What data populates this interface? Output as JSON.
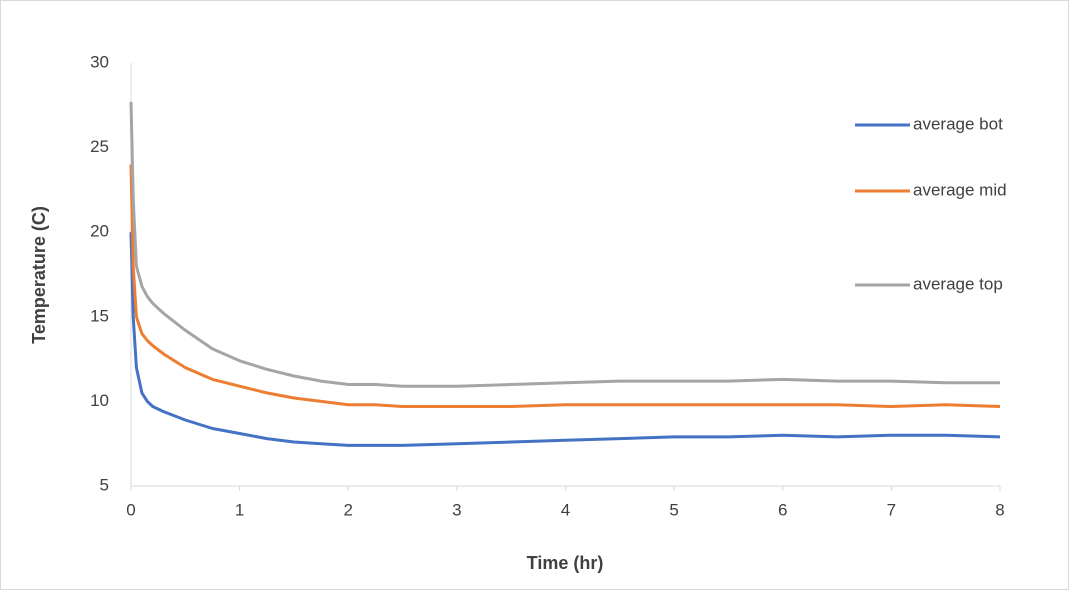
{
  "chart_data": {
    "type": "line",
    "x_label": "Time (hr)",
    "y_label": "Temperature (C)",
    "x": [
      0,
      0.02,
      0.05,
      0.1,
      0.15,
      0.2,
      0.3,
      0.5,
      0.75,
      1,
      1.25,
      1.5,
      1.75,
      2,
      2.25,
      2.5,
      3,
      3.5,
      4,
      4.5,
      5,
      5.5,
      6,
      6.5,
      7,
      7.5,
      8
    ],
    "series": [
      {
        "name": "average bot",
        "color": "#4472c4",
        "values": [
          20,
          15,
          12,
          10.5,
          10,
          9.7,
          9.4,
          8.9,
          8.4,
          8.1,
          7.8,
          7.6,
          7.5,
          7.4,
          7.4,
          7.4,
          7.5,
          7.6,
          7.7,
          7.8,
          7.9,
          7.9,
          8.0,
          7.9,
          8.0,
          8.0,
          7.9
        ]
      },
      {
        "name": "average mid",
        "color": "#ed7d31",
        "values": [
          24,
          18,
          15,
          14,
          13.6,
          13.3,
          12.8,
          12.0,
          11.3,
          10.9,
          10.5,
          10.2,
          10.0,
          9.8,
          9.8,
          9.7,
          9.7,
          9.7,
          9.8,
          9.8,
          9.8,
          9.8,
          9.8,
          9.8,
          9.7,
          9.8,
          9.7
        ]
      },
      {
        "name": "average top",
        "color": "#a5a5a5",
        "values": [
          27.7,
          22,
          18,
          16.8,
          16.2,
          15.8,
          15.2,
          14.2,
          13.1,
          12.4,
          11.9,
          11.5,
          11.2,
          11.0,
          11.0,
          10.9,
          10.9,
          11.0,
          11.1,
          11.2,
          11.2,
          11.2,
          11.3,
          11.2,
          11.2,
          11.1,
          11.1
        ]
      }
    ],
    "xlim": [
      0,
      8
    ],
    "xticks": [
      0,
      1,
      2,
      3,
      4,
      5,
      6,
      7,
      8
    ],
    "ylim": [
      5,
      30
    ],
    "yticks": [
      5,
      10,
      15,
      20,
      25,
      30
    ],
    "grid": false,
    "legend": "right"
  }
}
